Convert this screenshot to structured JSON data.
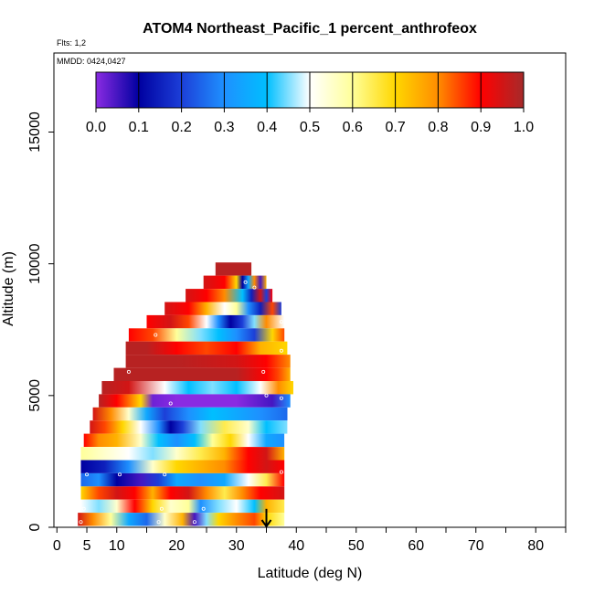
{
  "chart_data": {
    "type": "heatmap",
    "title": "ATOM4 Northeast_Pacific_1 percent_anthrofeox",
    "flights_label": "Flts: 1,2",
    "dates_label": "MMDD: 0424,0427",
    "xlabel": "Latitude (deg N)",
    "ylabel": "Altitude (m)",
    "xlim": [
      -0.5,
      85
    ],
    "ylim": [
      0,
      18000
    ],
    "x_ticks": [
      0,
      5,
      10,
      20,
      30,
      40,
      50,
      60,
      70,
      80
    ],
    "y_ticks": [
      0,
      5000,
      10000,
      15000
    ],
    "grid": false,
    "colorbar": {
      "ticks": [
        "0.0",
        "0.1",
        "0.2",
        "0.3",
        "0.4",
        "0.5",
        "0.6",
        "0.7",
        "0.8",
        "0.9",
        "1.0"
      ],
      "range": [
        0,
        1
      ],
      "colors": [
        "#8a2be2",
        "#0000a0",
        "#1c3fd8",
        "#1e90ff",
        "#00bfff",
        "#ffffff",
        "#ffff99",
        "#ffd700",
        "#ff8c00",
        "#ff0000",
        "#a52a2a"
      ]
    },
    "marker": {
      "latitude": 35,
      "altitude_top": 700,
      "altitude_bottom": 0
    },
    "bands": [
      {
        "alt": 9800,
        "lat_min": 26.5,
        "lat_max": 32.5,
        "lat_values": [
          26.5,
          32.5
        ],
        "values": [
          0.98,
          0.98
        ]
      },
      {
        "alt": 9300,
        "lat_min": 24.5,
        "lat_max": 35.0,
        "lat_values": [
          24.5,
          28,
          30,
          31,
          32,
          33,
          34,
          35
        ],
        "values": [
          0.95,
          0.9,
          0.7,
          0.1,
          0.35,
          0.8,
          0.05,
          0.75
        ]
      },
      {
        "alt": 8800,
        "lat_min": 21.5,
        "lat_max": 36.0,
        "lat_values": [
          21.5,
          25,
          28,
          31,
          32.5,
          34,
          35,
          36
        ],
        "values": [
          0.95,
          0.9,
          0.8,
          0.4,
          0.15,
          0.95,
          0.2,
          0.9
        ]
      },
      {
        "alt": 8300,
        "lat_min": 18.0,
        "lat_max": 37.5,
        "lat_values": [
          18,
          22,
          25,
          28,
          30,
          32,
          34,
          36,
          37.5
        ],
        "values": [
          0.95,
          0.9,
          0.75,
          0.5,
          0.6,
          0.3,
          0.15,
          0.85,
          0.2
        ]
      },
      {
        "alt": 7800,
        "lat_min": 15.0,
        "lat_max": 38.0,
        "lat_values": [
          15,
          19,
          22,
          25,
          27,
          29,
          31,
          33,
          35,
          38
        ],
        "values": [
          0.9,
          0.95,
          0.85,
          0.5,
          0.3,
          0.1,
          0.2,
          0.45,
          0.8,
          0.5
        ]
      },
      {
        "alt": 7300,
        "lat_min": 12.0,
        "lat_max": 38.0,
        "lat_values": [
          12,
          16,
          20,
          24,
          27,
          30,
          33,
          36,
          38
        ],
        "values": [
          0.9,
          0.85,
          0.6,
          0.45,
          0.4,
          0.3,
          0.2,
          0.7,
          0.85
        ]
      },
      {
        "alt": 6800,
        "lat_min": 11.5,
        "lat_max": 38.5,
        "lat_values": [
          11.5,
          15,
          20,
          25,
          30,
          34,
          38.5
        ],
        "values": [
          0.98,
          0.98,
          0.9,
          0.85,
          0.9,
          0.75,
          0.7
        ]
      },
      {
        "alt": 6300,
        "lat_min": 11.5,
        "lat_max": 39.0,
        "lat_values": [
          11.5,
          20,
          30,
          35,
          39
        ],
        "values": [
          0.98,
          0.98,
          0.95,
          0.9,
          0.8
        ]
      },
      {
        "alt": 5800,
        "lat_min": 9.5,
        "lat_max": 39.0,
        "lat_values": [
          9.5,
          20,
          30,
          35,
          37,
          39
        ],
        "values": [
          0.98,
          0.98,
          0.98,
          0.9,
          0.85,
          0.75
        ]
      },
      {
        "alt": 5300,
        "lat_min": 7.5,
        "lat_max": 39.5,
        "lat_values": [
          7.5,
          12,
          18,
          22,
          26,
          30,
          34,
          37,
          39.5
        ],
        "values": [
          0.98,
          0.95,
          0.5,
          0.4,
          0.45,
          0.4,
          0.5,
          0.8,
          0.7
        ]
      },
      {
        "alt": 4800,
        "lat_min": 7.0,
        "lat_max": 39.0,
        "lat_values": [
          7,
          10,
          14,
          16,
          20,
          30,
          36,
          39
        ],
        "values": [
          0.98,
          0.9,
          0.7,
          0.02,
          0.0,
          0.0,
          0.05,
          0.3
        ]
      },
      {
        "alt": 4300,
        "lat_min": 6.0,
        "lat_max": 38.5,
        "lat_values": [
          6,
          9,
          12,
          15,
          18,
          22,
          26,
          30,
          34,
          38.5
        ],
        "values": [
          0.95,
          0.8,
          0.55,
          0.35,
          0.2,
          0.3,
          0.4,
          0.35,
          0.3,
          0.25
        ]
      },
      {
        "alt": 3800,
        "lat_min": 5.5,
        "lat_max": 38.5,
        "lat_values": [
          5.5,
          8,
          11,
          14,
          17,
          19,
          21,
          24,
          28,
          32,
          35,
          38.5
        ],
        "values": [
          0.95,
          0.85,
          0.7,
          0.5,
          0.3,
          0.1,
          0.2,
          0.45,
          0.65,
          0.55,
          0.4,
          0.45
        ]
      },
      {
        "alt": 3300,
        "lat_min": 4.5,
        "lat_max": 38.0,
        "lat_values": [
          4.5,
          7,
          10,
          14,
          17,
          20,
          23,
          26,
          29,
          32,
          35,
          38
        ],
        "values": [
          0.9,
          0.8,
          0.75,
          0.55,
          0.4,
          0.3,
          0.4,
          0.6,
          0.7,
          0.5,
          0.35,
          0.3
        ]
      },
      {
        "alt": 2800,
        "lat_min": 4.0,
        "lat_max": 38.0,
        "lat_values": [
          4,
          8,
          12,
          16,
          20,
          24,
          28,
          32,
          35,
          38
        ],
        "values": [
          0.6,
          0.55,
          0.5,
          0.45,
          0.55,
          0.65,
          0.75,
          0.9,
          0.95,
          0.75
        ]
      },
      {
        "alt": 2300,
        "lat_min": 4.0,
        "lat_max": 38.0,
        "lat_values": [
          4,
          8,
          12,
          16,
          20,
          24,
          28,
          32,
          35,
          38
        ],
        "values": [
          0.1,
          0.15,
          0.3,
          0.55,
          0.7,
          0.75,
          0.8,
          0.9,
          0.95,
          0.9
        ]
      },
      {
        "alt": 1800,
        "lat_min": 4.0,
        "lat_max": 38.0,
        "lat_values": [
          4,
          7,
          10,
          14,
          17,
          20,
          24,
          28,
          32,
          35,
          38
        ],
        "values": [
          0.25,
          0.3,
          0.1,
          0.05,
          0.2,
          0.35,
          0.3,
          0.35,
          0.5,
          0.65,
          0.9
        ]
      },
      {
        "alt": 1300,
        "lat_min": 4.0,
        "lat_max": 38.0,
        "lat_values": [
          4,
          7,
          10,
          13,
          16,
          19,
          22,
          25,
          28,
          31,
          34,
          38
        ],
        "values": [
          0.7,
          0.85,
          0.95,
          0.9,
          0.75,
          0.9,
          0.95,
          0.8,
          0.65,
          0.8,
          0.9,
          0.95
        ]
      },
      {
        "alt": 800,
        "lat_min": 4.0,
        "lat_max": 38.0,
        "lat_values": [
          4,
          7,
          10,
          13,
          16,
          19,
          22,
          24,
          27,
          30,
          33,
          35,
          38
        ],
        "values": [
          0.5,
          0.45,
          0.55,
          0.9,
          0.7,
          0.55,
          0.6,
          0.3,
          0.45,
          0.5,
          0.4,
          0.75,
          0.65
        ]
      },
      {
        "alt": 300,
        "lat_min": 3.5,
        "lat_max": 38.0,
        "lat_values": [
          3.5,
          6,
          9,
          12,
          15,
          18,
          21,
          23,
          25,
          27,
          30,
          33,
          35,
          38
        ],
        "values": [
          0.95,
          0.8,
          0.6,
          0.35,
          0.25,
          0.55,
          0.75,
          0.05,
          0.45,
          0.7,
          0.8,
          0.85,
          0.7,
          0.6
        ]
      }
    ],
    "sample_points": [
      {
        "lat": 31.5,
        "alt": 9300
      },
      {
        "lat": 33.0,
        "alt": 9100
      },
      {
        "lat": 37.0,
        "alt": 8800
      },
      {
        "lat": 37.5,
        "alt": 7800
      },
      {
        "lat": 16.5,
        "alt": 7300
      },
      {
        "lat": 37.5,
        "alt": 6700
      },
      {
        "lat": 12.0,
        "alt": 5900
      },
      {
        "lat": 34.5,
        "alt": 5900
      },
      {
        "lat": 19.0,
        "alt": 4700
      },
      {
        "lat": 35.0,
        "alt": 5000
      },
      {
        "lat": 37.5,
        "alt": 4900
      },
      {
        "lat": 5.0,
        "alt": 2000
      },
      {
        "lat": 10.5,
        "alt": 2000
      },
      {
        "lat": 18.0,
        "alt": 2000
      },
      {
        "lat": 37.5,
        "alt": 2100
      },
      {
        "lat": 4.5,
        "alt": 700
      },
      {
        "lat": 17.5,
        "alt": 700
      },
      {
        "lat": 24.5,
        "alt": 700
      },
      {
        "lat": 4.0,
        "alt": 200
      },
      {
        "lat": 17.0,
        "alt": 200
      },
      {
        "lat": 23.0,
        "alt": 200
      }
    ]
  }
}
